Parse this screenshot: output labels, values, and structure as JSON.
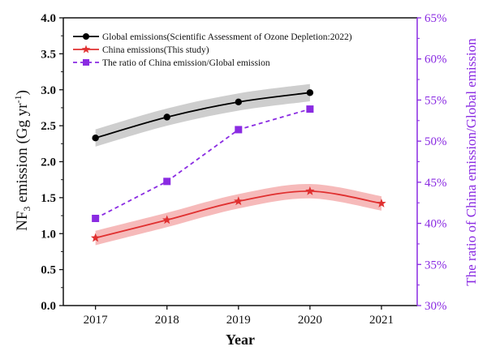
{
  "chart_data": {
    "type": "line",
    "title": "",
    "xlabel": "Year",
    "ylabel_main": "NF",
    "ylabel_sub": "3",
    "ylabel_after": " emission (Gg yr",
    "ylabel_sup": "-1",
    "ylabel_close": ")",
    "y2label": "The ratio of China emission/Global emission",
    "x_ticks": [
      "2017",
      "2018",
      "2019",
      "2020",
      "2021"
    ],
    "x_values": [
      2017,
      2018,
      2019,
      2020,
      2021
    ],
    "xlim": [
      2016.55,
      2021.5
    ],
    "ylim": [
      0,
      4.0
    ],
    "y_ticks": [
      "0.0",
      "0.5",
      "1.0",
      "1.5",
      "2.0",
      "2.5",
      "3.0",
      "3.5",
      "4.0"
    ],
    "y2lim": [
      30,
      65
    ],
    "y2_ticks": [
      "30%",
      "35%",
      "40%",
      "45%",
      "50%",
      "55%",
      "60%",
      "65%"
    ],
    "series": [
      {
        "name": "Global emissions(Scientific Assessment of Ozone Depletion:2022)",
        "axis": "left",
        "color": "#000000",
        "band_color": "#bdbdbd",
        "marker": "circle",
        "style": "solid",
        "x": [
          2017,
          2018,
          2019,
          2020
        ],
        "values": [
          2.33,
          2.62,
          2.83,
          2.96
        ],
        "band_half_width": 0.12
      },
      {
        "name": "China emissions(This study)",
        "axis": "left",
        "color": "#e03030",
        "band_color": "#f3a3a3",
        "marker": "star",
        "style": "solid",
        "x": [
          2017,
          2018,
          2019,
          2020,
          2021
        ],
        "values": [
          0.94,
          1.19,
          1.45,
          1.59,
          1.42
        ],
        "band_half_width": 0.1
      },
      {
        "name": "The ratio of China emission/Global emission",
        "axis": "right",
        "color": "#8a2be2",
        "marker": "square",
        "style": "dashed",
        "x": [
          2017,
          2018,
          2019,
          2020
        ],
        "values": [
          40.6,
          45.1,
          51.4,
          53.9
        ]
      }
    ]
  }
}
